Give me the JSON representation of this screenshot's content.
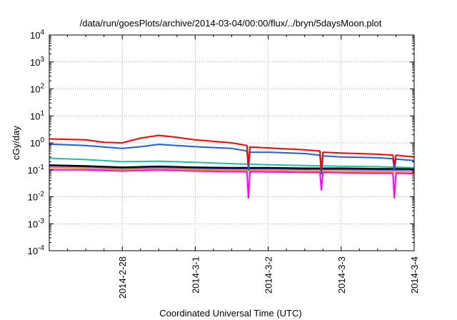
{
  "chart_data": {
    "type": "line",
    "title": "/data/run/goesPlots/archive/2014-03-04/00:00/flux/../bryn/5daysMoon.plot",
    "xlabel": "Coordinated Universal Time (UTC)",
    "ylabel": "cGy/day",
    "y_scale": "log",
    "ylim": [
      0.0001,
      10000
    ],
    "xlim": [
      "2014-02-27T00:00",
      "2014-03-04T00:00"
    ],
    "x_ticks": [
      {
        "date": "2014-02-28T00:00",
        "label": "2014-2-28"
      },
      {
        "date": "2014-03-01T00:00",
        "label": "2014-3-1"
      },
      {
        "date": "2014-03-02T00:00",
        "label": "2014-3-2"
      },
      {
        "date": "2014-03-03T00:00",
        "label": "2014-3-3"
      },
      {
        "date": "2014-03-04T00:00",
        "label": "2014-3-4"
      }
    ],
    "y_ticks": [
      {
        "value": 0.0001,
        "base": "10",
        "exp": "-4"
      },
      {
        "value": 0.001,
        "base": "10",
        "exp": "-3"
      },
      {
        "value": 0.01,
        "base": "10",
        "exp": "-2"
      },
      {
        "value": 0.1,
        "base": "10",
        "exp": "-1"
      },
      {
        "value": 1,
        "base": "10",
        "exp": "0"
      },
      {
        "value": 10,
        "base": "10",
        "exp": "1"
      },
      {
        "value": 100,
        "base": "10",
        "exp": "2"
      },
      {
        "value": 1000,
        "base": "10",
        "exp": "3"
      },
      {
        "value": 10000,
        "base": "10",
        "exp": "4"
      }
    ],
    "grid": true,
    "legend": "none",
    "series": [
      {
        "color": "#ff00ff",
        "x": [
          "2014-02-27T00:00",
          "2014-02-27T12:00",
          "2014-02-28T00:00",
          "2014-02-28T12:00",
          "2014-03-01T00:00",
          "2014-03-01T12:00",
          "2014-03-01T17:00",
          "2014-03-01T17:30",
          "2014-03-01T18:00",
          "2014-03-02T12:00",
          "2014-03-02T17:00",
          "2014-03-02T17:30",
          "2014-03-02T18:00",
          "2014-03-03T12:00",
          "2014-03-03T17:00",
          "2014-03-03T17:30",
          "2014-03-03T18:00",
          "2014-03-04T00:00"
        ],
        "values": [
          0.1,
          0.1,
          0.09,
          0.1,
          0.09,
          0.085,
          0.085,
          0.009,
          0.085,
          0.08,
          0.08,
          0.018,
          0.08,
          0.075,
          0.075,
          0.009,
          0.075,
          0.072
        ]
      },
      {
        "color": "#ff8c00",
        "x": [
          "2014-02-27T00:00",
          "2014-02-27T12:00",
          "2014-02-28T00:00",
          "2014-02-28T12:00",
          "2014-03-01T00:00",
          "2014-03-01T12:00",
          "2014-03-02T00:00",
          "2014-03-02T12:00",
          "2014-03-03T00:00",
          "2014-03-03T12:00",
          "2014-03-04T00:00"
        ],
        "values": [
          0.12,
          0.115,
          0.1,
          0.11,
          0.1,
          0.095,
          0.095,
          0.09,
          0.09,
          0.085,
          0.085
        ]
      },
      {
        "color": "#3333cc",
        "x": [
          "2014-02-27T00:00",
          "2014-02-27T12:00",
          "2014-02-28T00:00",
          "2014-02-28T12:00",
          "2014-03-01T00:00",
          "2014-03-01T12:00",
          "2014-03-02T00:00",
          "2014-03-02T12:00",
          "2014-03-03T00:00",
          "2014-03-03T12:00",
          "2014-03-04T00:00"
        ],
        "values": [
          0.14,
          0.13,
          0.115,
          0.125,
          0.115,
          0.11,
          0.11,
          0.105,
          0.105,
          0.1,
          0.1
        ]
      },
      {
        "color": "#000000",
        "x": [
          "2014-02-27T00:00",
          "2014-02-27T12:00",
          "2014-02-28T00:00",
          "2014-02-28T12:00",
          "2014-03-01T00:00",
          "2014-03-01T12:00",
          "2014-03-02T00:00",
          "2014-03-02T12:00",
          "2014-03-03T00:00",
          "2014-03-03T12:00",
          "2014-03-04T00:00"
        ],
        "values": [
          0.15,
          0.14,
          0.125,
          0.135,
          0.125,
          0.12,
          0.12,
          0.115,
          0.115,
          0.11,
          0.11
        ]
      },
      {
        "color": "#19c3a0",
        "x": [
          "2014-02-27T00:00",
          "2014-02-27T12:00",
          "2014-02-28T00:00",
          "2014-02-28T12:00",
          "2014-03-01T00:00",
          "2014-03-01T12:00",
          "2014-03-02T00:00",
          "2014-03-02T12:00",
          "2014-03-03T00:00",
          "2014-03-03T12:00",
          "2014-03-04T00:00"
        ],
        "values": [
          0.27,
          0.24,
          0.2,
          0.21,
          0.19,
          0.17,
          0.155,
          0.145,
          0.135,
          0.13,
          0.12
        ]
      },
      {
        "color": "#1f5fd8",
        "x": [
          "2014-02-27T00:00",
          "2014-02-27T06:00",
          "2014-02-27T12:00",
          "2014-02-27T18:00",
          "2014-02-28T00:00",
          "2014-02-28T06:00",
          "2014-02-28T12:00",
          "2014-02-28T18:00",
          "2014-03-01T00:00",
          "2014-03-01T12:00",
          "2014-03-01T17:00",
          "2014-03-01T17:30",
          "2014-03-01T18:00",
          "2014-03-02T00:00",
          "2014-03-02T12:00",
          "2014-03-02T17:00",
          "2014-03-02T17:30",
          "2014-03-02T18:00",
          "2014-03-03T00:00",
          "2014-03-03T12:00",
          "2014-03-03T17:00",
          "2014-03-03T17:30",
          "2014-03-03T18:00",
          "2014-03-04T00:00"
        ],
        "values": [
          0.9,
          0.85,
          0.8,
          0.7,
          0.62,
          0.72,
          0.88,
          0.8,
          0.72,
          0.62,
          0.5,
          0.1,
          0.45,
          0.45,
          0.4,
          0.35,
          0.07,
          0.33,
          0.3,
          0.28,
          0.26,
          0.1,
          0.25,
          0.22
        ]
      },
      {
        "color": "#ff0000",
        "x": [
          "2014-02-27T00:00",
          "2014-02-27T06:00",
          "2014-02-27T12:00",
          "2014-02-27T18:00",
          "2014-02-28T00:00",
          "2014-02-28T06:00",
          "2014-02-28T12:00",
          "2014-02-28T18:00",
          "2014-03-01T00:00",
          "2014-03-01T12:00",
          "2014-03-01T17:00",
          "2014-03-01T17:30",
          "2014-03-01T18:00",
          "2014-03-02T00:00",
          "2014-03-02T12:00",
          "2014-03-02T17:00",
          "2014-03-02T17:30",
          "2014-03-02T18:00",
          "2014-03-03T00:00",
          "2014-03-03T12:00",
          "2014-03-03T17:00",
          "2014-03-03T17:30",
          "2014-03-03T18:00",
          "2014-03-04T00:00"
        ],
        "values": [
          1.4,
          1.35,
          1.3,
          1.05,
          1.0,
          1.5,
          1.9,
          1.6,
          1.3,
          1.0,
          0.8,
          0.15,
          0.7,
          0.65,
          0.55,
          0.5,
          0.1,
          0.45,
          0.42,
          0.38,
          0.35,
          0.15,
          0.35,
          0.3
        ]
      }
    ]
  }
}
